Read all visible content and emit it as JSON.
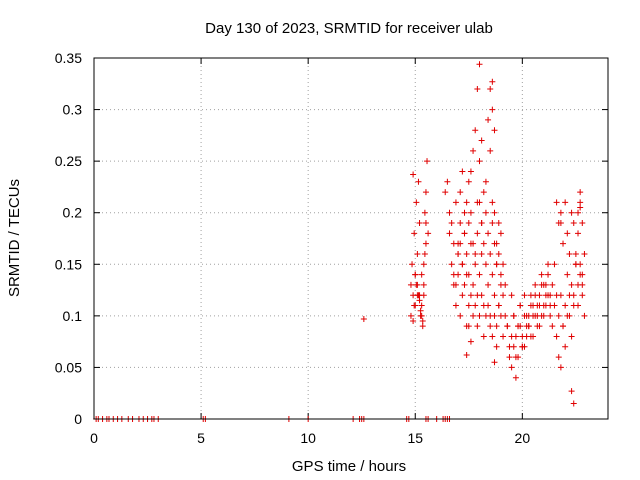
{
  "chart_data": {
    "type": "scatter",
    "title": "Day 130 of 2023, SRMTID for receiver ulab",
    "xlabel": "GPS time / hours",
    "ylabel": "SRMTID / TECUs",
    "xlim": [
      0,
      24
    ],
    "ylim": [
      0,
      0.35
    ],
    "x_ticks": [
      0,
      5,
      10,
      15,
      20
    ],
    "x_tick_labels": [
      "0",
      "5",
      "10",
      "15",
      "20"
    ],
    "y_ticks": [
      0,
      0.05,
      0.1,
      0.15,
      0.2,
      0.25,
      0.3,
      0.35
    ],
    "y_tick_labels": [
      "0",
      "0.05",
      "0.1",
      "0.15",
      "0.2",
      "0.25",
      "0.3",
      "0.35"
    ],
    "grid": true,
    "marker": "+",
    "color": "#e00000",
    "series": [
      {
        "name": "SRMTID",
        "x": [
          0.1,
          0.2,
          0.4,
          0.6,
          0.7,
          0.9,
          1.1,
          1.3,
          1.6,
          1.8,
          2.1,
          2.3,
          2.5,
          2.7,
          2.8,
          3.0,
          5.1,
          5.2,
          9.1,
          10.0,
          12.1,
          12.4,
          12.5,
          12.6,
          14.6,
          14.7,
          15.5,
          15.6,
          16.0,
          16.3,
          16.4,
          16.5,
          16.6,
          12.6,
          14.8,
          14.8,
          14.85,
          14.9,
          14.9,
          14.95,
          15.0,
          15.0,
          15.05,
          15.1,
          15.1,
          15.15,
          15.2,
          15.2,
          15.25,
          15.3,
          15.3,
          15.35,
          15.4,
          15.4,
          15.45,
          15.5,
          15.5,
          15.55,
          15.6,
          14.9,
          15.0,
          15.1,
          15.2,
          15.3,
          15.4,
          15.5,
          14.95,
          15.05,
          15.15,
          15.25,
          15.35,
          15.45,
          16.4,
          16.5,
          16.6,
          16.7,
          16.8,
          16.9,
          17.0,
          17.1,
          17.2,
          17.3,
          17.4,
          17.5,
          17.6,
          17.7,
          17.8,
          17.9,
          18.0,
          18.1,
          18.2,
          18.3,
          18.4,
          18.5,
          18.6,
          18.7,
          18.8,
          18.9,
          19.0,
          19.1,
          19.2,
          16.6,
          16.7,
          16.8,
          16.9,
          17.0,
          17.1,
          17.2,
          17.3,
          17.4,
          17.5,
          17.6,
          17.7,
          17.8,
          17.9,
          18.0,
          18.1,
          18.2,
          18.3,
          18.4,
          18.5,
          18.6,
          18.7,
          18.8,
          18.9,
          19.0,
          19.1,
          19.2,
          19.3,
          16.8,
          16.9,
          17.0,
          17.1,
          17.2,
          17.3,
          17.4,
          17.5,
          17.6,
          17.7,
          17.8,
          17.9,
          18.0,
          18.1,
          18.2,
          18.3,
          18.4,
          18.5,
          18.6,
          18.7,
          18.8,
          18.9,
          19.0,
          19.1,
          17.0,
          17.1,
          17.2,
          17.3,
          17.4,
          17.5,
          17.6,
          17.7,
          17.8,
          17.9,
          18.0,
          18.1,
          18.2,
          18.3,
          18.4,
          18.5,
          18.6,
          18.7,
          18.8,
          18.9,
          19.0,
          17.9,
          18.0,
          18.1,
          18.5,
          18.6,
          18.6,
          18.7,
          17.4,
          17.5,
          17.6,
          18.7,
          18.8,
          19.3,
          19.4,
          19.5,
          19.6,
          19.7,
          19.8,
          19.9,
          20.0,
          20.1,
          20.2,
          20.3,
          20.4,
          20.5,
          20.6,
          20.7,
          20.8,
          20.9,
          21.0,
          21.1,
          21.2,
          21.3,
          21.4,
          21.5,
          21.6,
          19.4,
          19.5,
          19.6,
          19.7,
          19.8,
          19.9,
          20.0,
          20.1,
          20.2,
          20.3,
          20.4,
          20.5,
          20.6,
          20.7,
          20.8,
          20.9,
          21.0,
          21.1,
          21.2,
          21.3,
          21.4,
          21.5,
          19.5,
          19.6,
          19.7,
          19.8,
          19.9,
          20.0,
          20.1,
          20.2,
          20.3,
          20.4,
          20.5,
          20.6,
          20.7,
          20.8,
          20.9,
          21.0,
          21.1,
          21.2,
          21.3,
          21.6,
          21.7,
          21.8,
          21.9,
          22.0,
          22.1,
          22.2,
          22.3,
          22.4,
          22.5,
          22.6,
          22.7,
          22.8,
          22.9,
          21.7,
          21.8,
          21.9,
          22.0,
          22.1,
          22.2,
          22.3,
          22.4,
          22.5,
          22.6,
          22.7,
          22.8,
          22.9,
          21.8,
          21.9,
          22.0,
          22.1,
          22.2,
          22.3,
          22.4,
          22.5,
          22.6,
          22.7,
          22.8,
          22.3,
          22.4,
          22.6,
          22.7,
          22.7,
          22.8,
          21.6,
          21.7,
          21.8
        ],
        "y": [
          0,
          0,
          0,
          0,
          0,
          0,
          0,
          0,
          0,
          0,
          0,
          0,
          0,
          0,
          0,
          0,
          0,
          0,
          0,
          0,
          0,
          0,
          0,
          0,
          0,
          0,
          0,
          0,
          0,
          0,
          0,
          0,
          0,
          0.097,
          0.13,
          0.1,
          0.15,
          0.12,
          0.095,
          0.18,
          0.14,
          0.11,
          0.21,
          0.16,
          0.13,
          0.23,
          0.19,
          0.12,
          0.1,
          0.14,
          0.11,
          0.09,
          0.13,
          0.12,
          0.16,
          0.19,
          0.22,
          0.25,
          0.18,
          0.237,
          0.14,
          0.12,
          0.115,
          0.1,
          0.15,
          0.17,
          0.11,
          0.13,
          0.12,
          0.105,
          0.095,
          0.2,
          0.22,
          0.23,
          0.2,
          0.19,
          0.14,
          0.21,
          0.17,
          0.22,
          0.24,
          0.2,
          0.21,
          0.23,
          0.24,
          0.26,
          0.28,
          0.21,
          0.25,
          0.19,
          0.22,
          0.23,
          0.29,
          0.26,
          0.21,
          0.2,
          0.17,
          0.19,
          0.18,
          0.15,
          0.13,
          0.18,
          0.15,
          0.17,
          0.13,
          0.16,
          0.19,
          0.15,
          0.18,
          0.16,
          0.14,
          0.17,
          0.13,
          0.15,
          0.12,
          0.14,
          0.16,
          0.11,
          0.15,
          0.13,
          0.1,
          0.14,
          0.12,
          0.15,
          0.11,
          0.13,
          0.12,
          0.1,
          0.09,
          0.13,
          0.11,
          0.14,
          0.1,
          0.12,
          0.13,
          0.09,
          0.11,
          0.12,
          0.1,
          0.11,
          0.09,
          0.1,
          0.12,
          0.08,
          0.1,
          0.11,
          0.09,
          0.08,
          0.1,
          0.09,
          0.11,
          0.1,
          0.08,
          0.16,
          0.17,
          0.15,
          0.18,
          0.14,
          0.19,
          0.2,
          0.17,
          0.16,
          0.18,
          0.21,
          0.19,
          0.17,
          0.2,
          0.18,
          0.16,
          0.19,
          0.17,
          0.15,
          0.16,
          0.14,
          0.32,
          0.344,
          0.27,
          0.32,
          0.327,
          0.3,
          0.28,
          0.062,
          0.09,
          0.075,
          0.055,
          0.07,
          0.09,
          0.07,
          0.08,
          0.1,
          0.06,
          0.09,
          0.11,
          0.08,
          0.07,
          0.1,
          0.09,
          0.12,
          0.08,
          0.1,
          0.11,
          0.09,
          0.13,
          0.1,
          0.12,
          0.14,
          0.11,
          0.13,
          0.15,
          0.12,
          0.06,
          0.05,
          0.07,
          0.08,
          0.06,
          0.09,
          0.07,
          0.1,
          0.08,
          0.09,
          0.11,
          0.1,
          0.12,
          0.09,
          0.11,
          0.1,
          0.13,
          0.11,
          0.12,
          0.1,
          0.09,
          0.11,
          0.12,
          0.1,
          0.04,
          0.09,
          0.11,
          0.07,
          0.12,
          0.09,
          0.1,
          0.08,
          0.11,
          0.13,
          0.1,
          0.12,
          0.14,
          0.11,
          0.13,
          0.15,
          0.12,
          0.08,
          0.1,
          0.12,
          0.09,
          0.11,
          0.14,
          0.1,
          0.13,
          0.12,
          0.15,
          0.11,
          0.14,
          0.13,
          0.16,
          0.06,
          0.05,
          0.09,
          0.07,
          0.1,
          0.12,
          0.08,
          0.11,
          0.16,
          0.13,
          0.15,
          0.12,
          0.1,
          0.19,
          0.17,
          0.21,
          0.18,
          0.16,
          0.2,
          0.19,
          0.15,
          0.18,
          0.21,
          0.14,
          0.027,
          0.015,
          0.2,
          0.22,
          0.205,
          0.19,
          0.21,
          0.19,
          0.2
        ]
      }
    ]
  }
}
